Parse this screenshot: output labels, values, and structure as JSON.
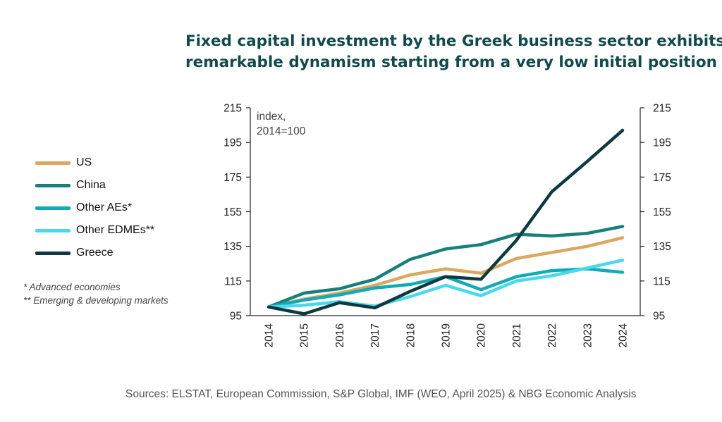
{
  "title_lines": [
    "Fixed capital investment by the Greek business sector exhibits",
    "remarkable dynamism starting from a very low initial position"
  ],
  "notes": [
    "* Advanced economies",
    "** Emerging & developing markets"
  ],
  "source": "Sources: ELSTAT, European Commission, S&P Global, IMF (WEO, April 2025) & NBG Economic Analysis",
  "chart_data": {
    "type": "line",
    "annotation_lines": [
      "index,",
      "2014=100"
    ],
    "x": [
      "2014",
      "2015",
      "2016",
      "2017",
      "2018",
      "2019",
      "2020",
      "2021",
      "2022",
      "2023",
      "2024"
    ],
    "ylim": [
      95,
      215
    ],
    "yticks": [
      95,
      115,
      135,
      155,
      175,
      195,
      215
    ],
    "y2ticks": [
      95,
      115,
      135,
      155,
      175,
      195,
      215
    ],
    "grid": false,
    "legend_position": "left",
    "series": [
      {
        "name": "US",
        "color": "#dba862",
        "values": [
          100,
          104.5,
          108,
          112.5,
          118.5,
          122,
          119.5,
          128,
          131.5,
          135,
          140
        ]
      },
      {
        "name": "China",
        "color": "#17807a",
        "values": [
          100,
          108,
          110.5,
          116,
          127.5,
          133.5,
          136,
          142,
          141,
          142.5,
          146.5
        ]
      },
      {
        "name": "Other AEs*",
        "color": "#12aab6",
        "values": [
          100,
          104,
          107,
          111,
          113,
          117.5,
          110,
          117.5,
          121,
          122,
          120
        ]
      },
      {
        "name": "Other EDMEs**",
        "color": "#4ad8ef",
        "values": [
          100,
          101,
          103,
          100.5,
          106,
          112.5,
          106.5,
          115,
          118,
          122.5,
          127
        ]
      },
      {
        "name": "Greece",
        "color": "#0e3a3f",
        "values": [
          100,
          96,
          102.5,
          99.5,
          109,
          117.5,
          116,
          138.5,
          166.5,
          184,
          202
        ]
      }
    ]
  }
}
